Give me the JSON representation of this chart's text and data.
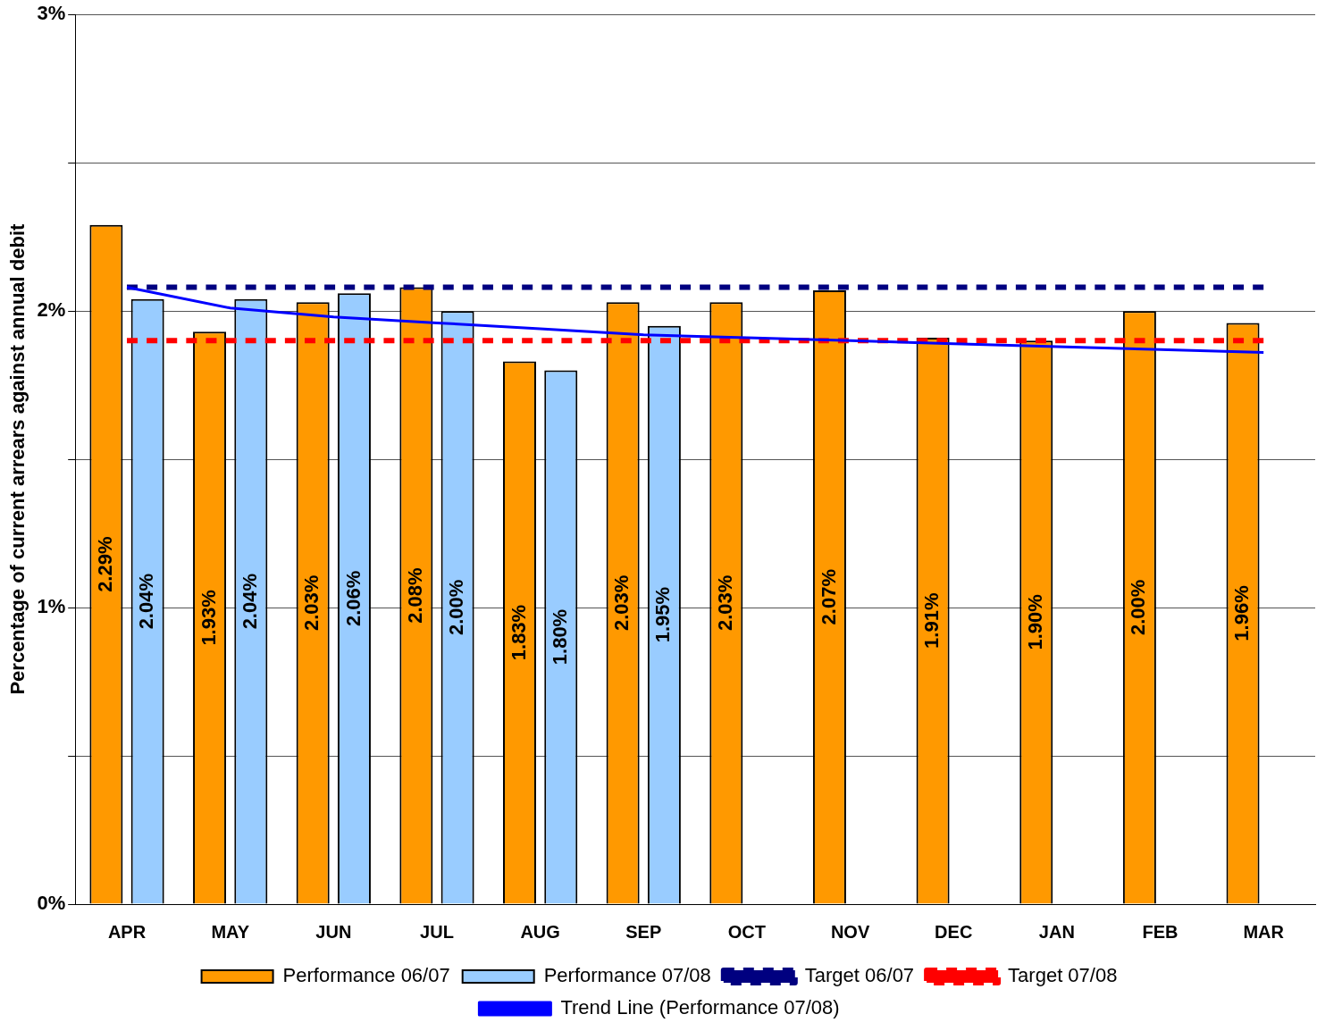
{
  "chart_data": {
    "type": "bar",
    "ylabel": "Percentage of current arrears against annual debit",
    "categories": [
      "APR",
      "MAY",
      "JUN",
      "JUL",
      "AUG",
      "SEP",
      "OCT",
      "NOV",
      "DEC",
      "JAN",
      "FEB",
      "MAR"
    ],
    "series": [
      {
        "name": "Performance 06/07",
        "color": "#ff9900",
        "values": [
          2.29,
          1.93,
          2.03,
          2.08,
          1.83,
          2.03,
          2.03,
          2.07,
          1.91,
          1.9,
          2.0,
          1.96
        ],
        "value_labels": [
          "2.29%",
          "1.93%",
          "2.03%",
          "2.08%",
          "1.83%",
          "2.03%",
          "2.03%",
          "2.07%",
          "1.91%",
          "1.90%",
          "2.00%",
          "1.96%"
        ]
      },
      {
        "name": "Performance 07/08",
        "color": "#99ccff",
        "values": [
          2.04,
          2.04,
          2.06,
          2.0,
          1.8,
          1.95,
          null,
          null,
          null,
          null,
          null,
          null
        ],
        "value_labels": [
          "2.04%",
          "2.04%",
          "2.06%",
          "2.00%",
          "1.80%",
          "1.95%",
          null,
          null,
          null,
          null,
          null,
          null
        ]
      },
      {
        "name": "Target 06/07",
        "type": "line",
        "color": "#000080",
        "line_style": "dashed",
        "values": [
          2.08,
          2.08,
          2.08,
          2.08,
          2.08,
          2.08,
          2.08,
          2.08,
          2.08,
          2.08,
          2.08,
          2.08
        ]
      },
      {
        "name": "Target 07/08",
        "type": "line",
        "color": "#ff0000",
        "line_style": "dashed",
        "values": [
          1.9,
          1.9,
          1.9,
          1.9,
          1.9,
          1.9,
          1.9,
          1.9,
          1.9,
          1.9,
          1.9,
          1.9
        ]
      },
      {
        "name": "Trend Line (Performance 07/08)",
        "type": "line",
        "color": "#0000ff",
        "line_style": "solid",
        "values": [
          2.08,
          2.01,
          1.98,
          1.96,
          1.94,
          1.92,
          1.91,
          1.9,
          1.89,
          1.88,
          1.87,
          1.86
        ]
      }
    ],
    "ylim": [
      0,
      3
    ],
    "yticks": [
      {
        "value": 0,
        "label": "0%"
      },
      {
        "value": 0.5,
        "label": null
      },
      {
        "value": 1,
        "label": "1%"
      },
      {
        "value": 1.5,
        "label": null
      },
      {
        "value": 2,
        "label": "2%"
      },
      {
        "value": 2.5,
        "label": null
      },
      {
        "value": 3,
        "label": "3%"
      }
    ],
    "grid": "y",
    "legend": "bottom",
    "marker": "none"
  }
}
